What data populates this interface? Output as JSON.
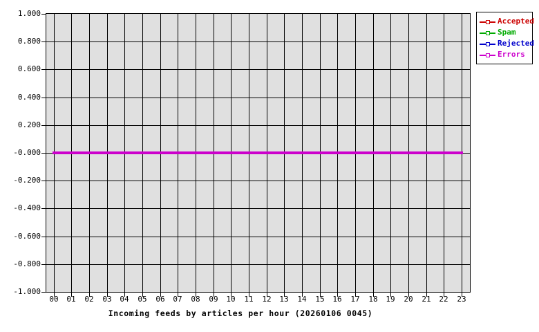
{
  "chart_data": {
    "type": "line",
    "title": "Incoming feeds by articles per hour (20260106 0045)",
    "xlabel": "",
    "ylabel": "",
    "x_ticklabels": [
      "00",
      "01",
      "02",
      "03",
      "04",
      "05",
      "06",
      "07",
      "08",
      "09",
      "10",
      "11",
      "12",
      "13",
      "14",
      "15",
      "16",
      "17",
      "18",
      "19",
      "20",
      "21",
      "22",
      "23"
    ],
    "y_ticklabels": [
      "1.000",
      "0.800",
      "0.600",
      "0.400",
      "0.200",
      "-0.000",
      "-0.200",
      "-0.400",
      "-0.600",
      "-0.800",
      "-1.000"
    ],
    "ylim": [
      -1.0,
      1.0
    ],
    "grid": true,
    "legend_position": "outside-top-right",
    "series": [
      {
        "name": "Accepted",
        "color": "#cc0000",
        "values": [
          0,
          0,
          0,
          0,
          0,
          0,
          0,
          0,
          0,
          0,
          0,
          0,
          0,
          0,
          0,
          0,
          0,
          0,
          0,
          0,
          0,
          0,
          0,
          0
        ]
      },
      {
        "name": "Spam",
        "color": "#00aa00",
        "values": [
          0,
          0,
          0,
          0,
          0,
          0,
          0,
          0,
          0,
          0,
          0,
          0,
          0,
          0,
          0,
          0,
          0,
          0,
          0,
          0,
          0,
          0,
          0,
          0
        ]
      },
      {
        "name": "Rejected",
        "color": "#0000cc",
        "values": [
          0,
          0,
          0,
          0,
          0,
          0,
          0,
          0,
          0,
          0,
          0,
          0,
          0,
          0,
          0,
          0,
          0,
          0,
          0,
          0,
          0,
          0,
          0,
          0
        ]
      },
      {
        "name": "Errors",
        "color": "#cc00cc",
        "values": [
          0,
          0,
          0,
          0,
          0,
          0,
          0,
          0,
          0,
          0,
          0,
          0,
          0,
          0,
          0,
          0,
          0,
          0,
          0,
          0,
          0,
          0,
          0,
          0
        ]
      }
    ],
    "colors": {
      "page_background": "#ffffff",
      "plot_background": "#e0e0e0",
      "grid": "#000000",
      "text": "#000000"
    }
  }
}
